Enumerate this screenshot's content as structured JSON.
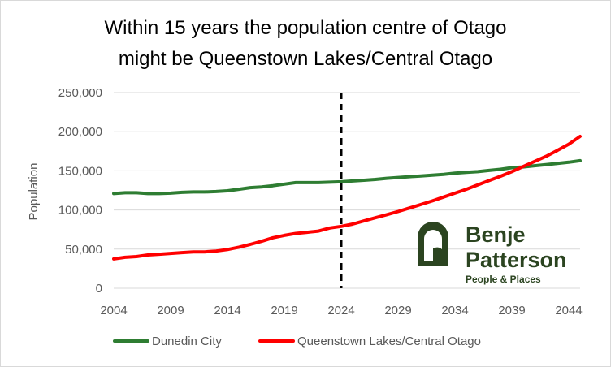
{
  "chart_data": {
    "type": "line",
    "title": [
      "Within 15 years the population centre of Otago",
      "might be Queenstown Lakes/Central Otago"
    ],
    "xlabel": "",
    "ylabel": "Population",
    "xlim": [
      2004,
      2045
    ],
    "ylim": [
      0,
      250000
    ],
    "x_ticks": [
      2004,
      2009,
      2014,
      2019,
      2024,
      2029,
      2034,
      2039,
      2044
    ],
    "y_ticks": [
      0,
      50000,
      100000,
      150000,
      200000,
      250000
    ],
    "y_tick_labels": [
      "0",
      "50,000",
      "100,000",
      "150,000",
      "200,000",
      "250,000"
    ],
    "grid": "horizontal",
    "legend_position": "bottom",
    "vertical_marker": {
      "x": 2024,
      "style": "dashed",
      "color": "#000000"
    },
    "series": [
      {
        "name": "Dunedin City",
        "color": "#2e7d32",
        "x": [
          2004,
          2005,
          2006,
          2007,
          2008,
          2009,
          2010,
          2011,
          2012,
          2013,
          2014,
          2015,
          2016,
          2017,
          2018,
          2019,
          2020,
          2021,
          2022,
          2023,
          2024,
          2025,
          2026,
          2027,
          2028,
          2029,
          2030,
          2031,
          2032,
          2033,
          2034,
          2035,
          2036,
          2037,
          2038,
          2039,
          2040,
          2041,
          2042,
          2043,
          2044,
          2045
        ],
        "values": [
          121000,
          122000,
          122000,
          121000,
          121000,
          121500,
          122500,
          123000,
          123000,
          123500,
          124500,
          126500,
          128500,
          129500,
          131000,
          133000,
          135000,
          135000,
          135000,
          135500,
          136000,
          137000,
          138000,
          139000,
          140500,
          141500,
          142500,
          143500,
          144500,
          145500,
          147000,
          148000,
          149000,
          150500,
          152000,
          154000,
          155000,
          156500,
          158000,
          159500,
          161000,
          163000
        ]
      },
      {
        "name": "Queenstown Lakes/Central Otago",
        "color": "#ff0000",
        "x": [
          2004,
          2005,
          2006,
          2007,
          2008,
          2009,
          2010,
          2011,
          2012,
          2013,
          2014,
          2015,
          2016,
          2017,
          2018,
          2019,
          2020,
          2021,
          2022,
          2023,
          2024,
          2025,
          2026,
          2027,
          2028,
          2029,
          2030,
          2031,
          2032,
          2033,
          2034,
          2035,
          2036,
          2037,
          2038,
          2039,
          2040,
          2041,
          2042,
          2043,
          2044,
          2045
        ],
        "values": [
          37500,
          39500,
          40500,
          42500,
          43500,
          44500,
          45500,
          46500,
          46500,
          47500,
          49500,
          52500,
          56000,
          60000,
          64500,
          67500,
          70000,
          71500,
          73000,
          77000,
          79000,
          82000,
          86000,
          90000,
          94000,
          98000,
          102500,
          107000,
          111500,
          116500,
          121500,
          126500,
          132000,
          137500,
          143000,
          149000,
          155500,
          162000,
          168500,
          176000,
          184000,
          194000
        ]
      }
    ]
  },
  "logo": {
    "line1": "Benje",
    "line2": "Patterson",
    "tagline": "People & Places",
    "color": "#2b4420"
  },
  "border_color": "#d9d9d9"
}
